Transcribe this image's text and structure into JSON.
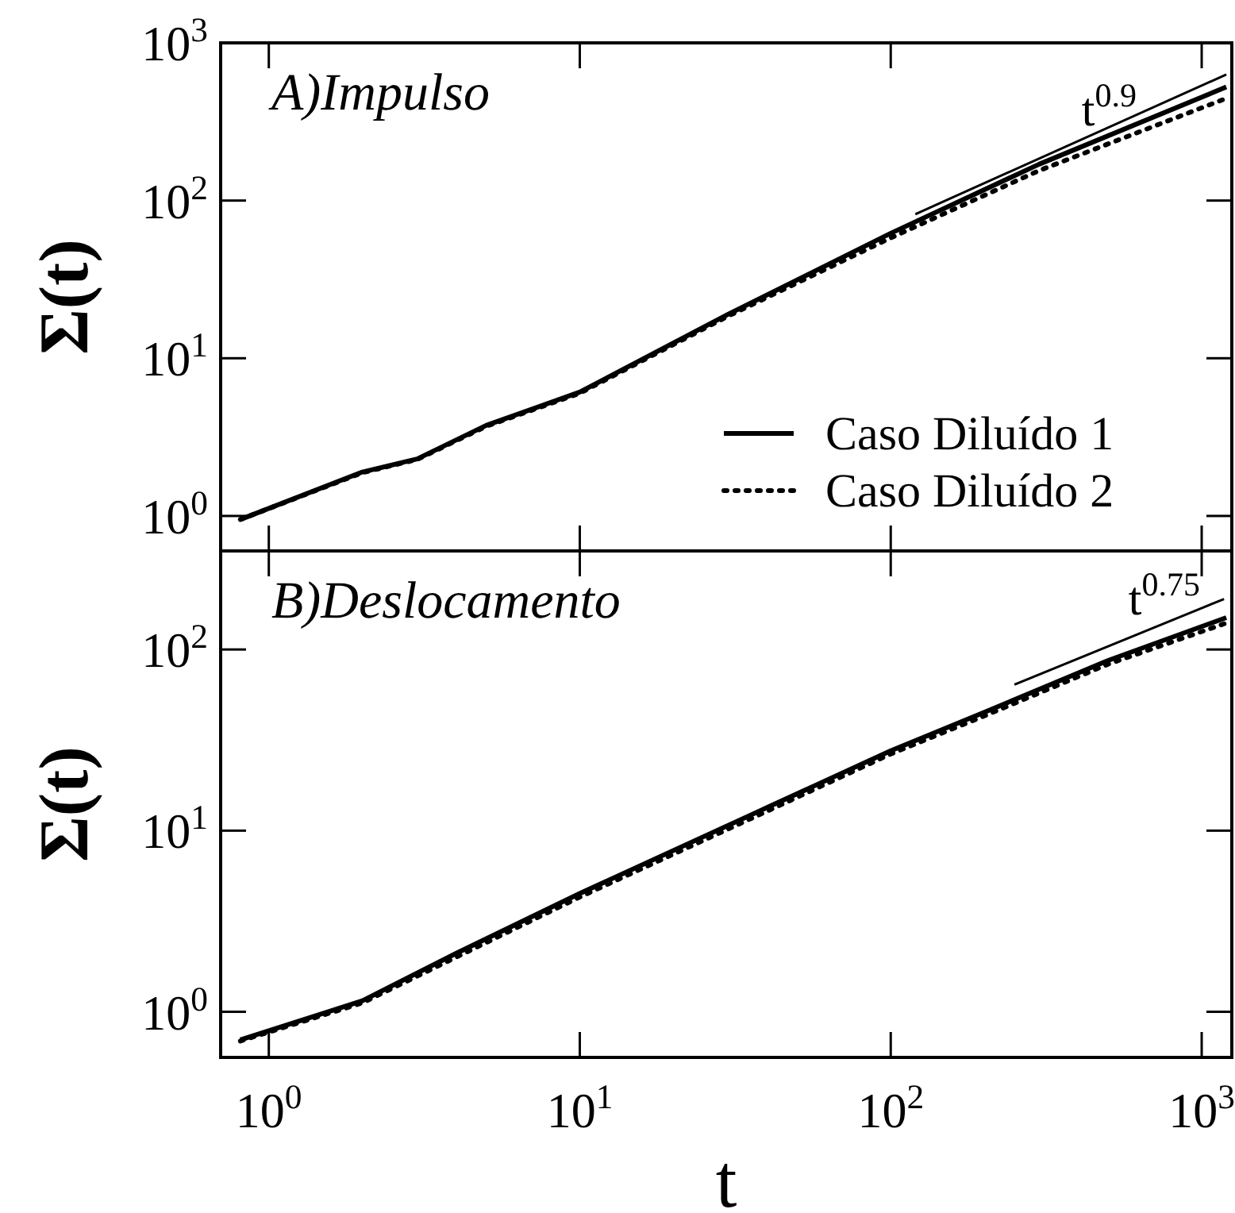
{
  "chart_data": [
    {
      "type": "line",
      "title": "A)Impulso",
      "ylabel": "Σ(t)",
      "log": "xy",
      "grid": false,
      "legend": "bottom right",
      "tick_labels": "y",
      "xlim": [
        0.7,
        1250
      ],
      "ylim": [
        0.6,
        1000
      ],
      "xticks": [
        {
          "value": 1,
          "label": null
        },
        {
          "value": 10,
          "label": null
        },
        {
          "value": 100,
          "label": null
        },
        {
          "value": 1000,
          "label": null
        }
      ],
      "yticks": [
        {
          "value": 1,
          "label": "10$^{0}$"
        },
        {
          "value": 10,
          "label": "10$^{1}$"
        },
        {
          "value": 100,
          "label": "10$^{2}$"
        },
        {
          "value": 1000,
          "label": "10$^{3}$"
        }
      ],
      "x": [
        0.81,
        2,
        3,
        5,
        10,
        30,
        100,
        300,
        1200
      ],
      "series": [
        {
          "name": "Caso Diluído 1",
          "color": "#000000",
          "line_style": "solid",
          "values": [
            0.95,
            1.9,
            2.3,
            3.75,
            6.1,
            19,
            62,
            170,
            525
          ]
        },
        {
          "name": "Caso Diluído 2",
          "color": "#000000",
          "line_style": "dotted",
          "values": [
            0.95,
            1.88,
            2.28,
            3.7,
            6.0,
            18.5,
            58,
            155,
            445
          ]
        },
        {
          "type": "line",
          "color": "#000000",
          "line_style": "solid",
          "x": [
            120,
            1200
          ],
          "values": [
            82,
            630
          ]
        }
      ],
      "annotations": [
        "t$^{0.9}$"
      ]
    },
    {
      "type": "line",
      "title": "B)Deslocamento",
      "xlabel": "t",
      "ylabel": "Σ(t)",
      "log": "xy",
      "grid": false,
      "xlim": [
        0.7,
        1250
      ],
      "ylim": [
        0.56,
        350
      ],
      "xticks": [
        {
          "value": 1,
          "label": "10$^{0}$"
        },
        {
          "value": 10,
          "label": "10$^{1}$"
        },
        {
          "value": 100,
          "label": "10$^{2}$"
        },
        {
          "value": 1000,
          "label": "10$^{3}$"
        }
      ],
      "yticks": [
        {
          "value": 1,
          "label": "10$^{0}$"
        },
        {
          "value": 10,
          "label": "10$^{1}$"
        },
        {
          "value": 100,
          "label": "10$^{2}$"
        }
      ],
      "x": [
        0.81,
        2,
        4,
        10,
        40,
        100,
        200,
        500,
        1200
      ],
      "series": [
        {
          "color": "#000000",
          "line_style": "solid",
          "values": [
            0.7,
            1.15,
            2.1,
            4.5,
            13.4,
            27.6,
            45,
            87,
            150
          ]
        },
        {
          "color": "#000000",
          "line_style": "dotted",
          "values": [
            0.69,
            1.12,
            2.0,
            4.3,
            12.8,
            26.5,
            43,
            83,
            140
          ]
        },
        {
          "type": "line",
          "color": "#000000",
          "line_style": "solid",
          "x": [
            250,
            1180
          ],
          "values": [
            64,
            190
          ]
        }
      ],
      "annotations": [
        "t$^{0.75}$"
      ]
    }
  ]
}
